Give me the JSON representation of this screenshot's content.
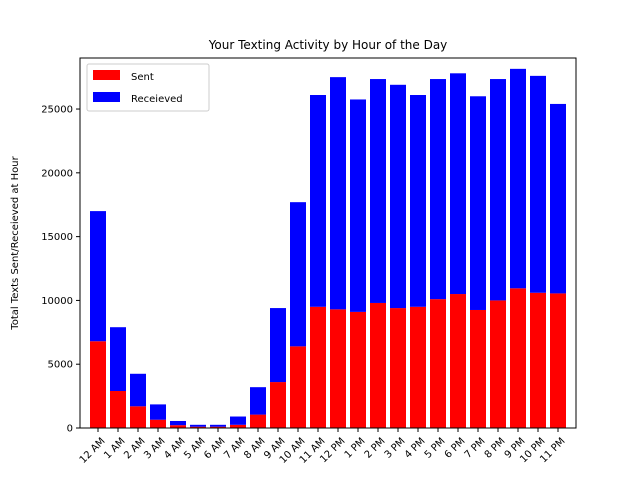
{
  "chart_data": {
    "type": "bar",
    "stacked": true,
    "title": "Your Texting Activity by Hour of the Day",
    "xlabel": "",
    "ylabel": "Total Texts Sent/Receieved at Hour",
    "categories": [
      "12 AM",
      "1 AM",
      "2 AM",
      "3 AM",
      "4 AM",
      "5 AM",
      "6 AM",
      "7 AM",
      "8 AM",
      "9 AM",
      "10 AM",
      "11 AM",
      "12 PM",
      "1 PM",
      "2 PM",
      "3 PM",
      "4 PM",
      "5 PM",
      "6 PM",
      "7 PM",
      "8 PM",
      "9 PM",
      "10 PM",
      "11 PM"
    ],
    "series": [
      {
        "name": "Sent",
        "color": "#ff0000",
        "values": [
          6800,
          2900,
          1700,
          650,
          220,
          100,
          100,
          250,
          1050,
          3600,
          6400,
          9500,
          9300,
          9100,
          9800,
          9400,
          9500,
          10100,
          10500,
          9250,
          10000,
          10950,
          10600,
          10550
        ]
      },
      {
        "name": "Receieved",
        "color": "#0000ff",
        "values": [
          10200,
          5000,
          2550,
          1200,
          330,
          150,
          150,
          650,
          2150,
          5800,
          11300,
          16600,
          18200,
          16650,
          17550,
          17500,
          16600,
          17250,
          17300,
          16750,
          17350,
          17200,
          17000,
          14850
        ]
      }
    ],
    "ylim": [
      0,
      29000
    ],
    "yticks": [
      0,
      5000,
      10000,
      15000,
      20000,
      25000
    ],
    "xtick_rotation": -45,
    "grid": false,
    "legend_position": "upper-left"
  }
}
